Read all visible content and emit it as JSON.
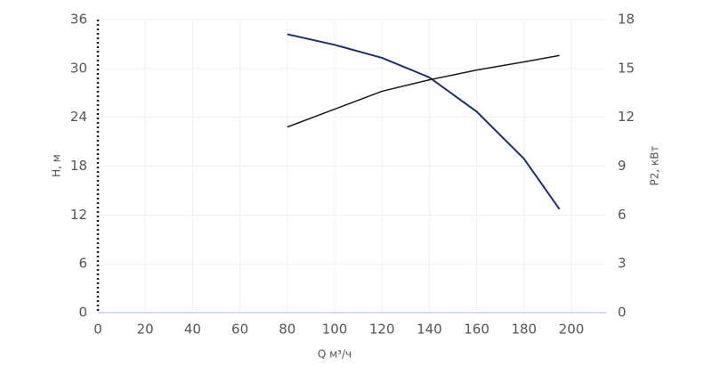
{
  "chart_data": {
    "type": "line",
    "x_label": "Q м³/ч",
    "y_label": "H, м",
    "y2_label": "P2, кВт",
    "x": [
      80,
      100,
      120,
      140,
      160,
      180,
      195
    ],
    "series": [
      {
        "name": "H",
        "color": "#1f2d6b",
        "values": [
          34.2,
          32.9,
          31.3,
          28.9,
          24.7,
          18.9,
          12.7
        ]
      },
      {
        "name": "P2",
        "color": "#1a1a1a",
        "axis": "y2",
        "values": [
          11.4,
          12.5,
          13.6,
          14.3,
          14.9,
          15.4,
          15.8
        ]
      }
    ],
    "xlim": [
      0,
      215
    ],
    "xticks": [
      0,
      20,
      40,
      60,
      80,
      100,
      120,
      140,
      160,
      180,
      200
    ],
    "ylim": [
      0,
      36
    ],
    "yticks": [
      0,
      6,
      12,
      18,
      24,
      30,
      36
    ],
    "y2lim": [
      0,
      18
    ],
    "y2ticks": [
      0,
      3,
      6,
      9,
      12,
      15,
      18
    ],
    "grid": true
  }
}
